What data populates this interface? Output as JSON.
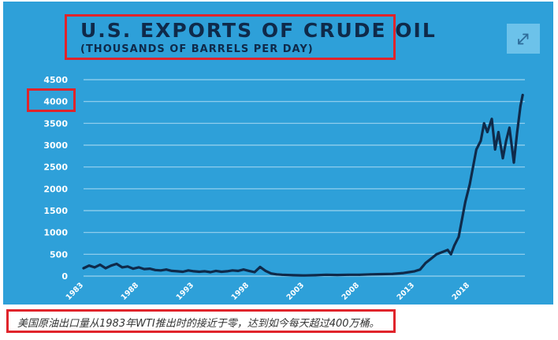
{
  "chart_data": {
    "type": "line",
    "title": "U.S. EXPORTS OF CRUDE OIL",
    "subtitle": "(THOUSANDS OF BARRELS PER DAY)",
    "x_ticks": [
      "1983",
      "1988",
      "1993",
      "1998",
      "2003",
      "2008",
      "2013",
      "2018"
    ],
    "y_ticks": [
      "4500",
      "4000",
      "3500",
      "3000",
      "2500",
      "2000",
      "1500",
      "1000",
      "500",
      "0"
    ],
    "ylim": [
      0,
      4500
    ],
    "xlim": [
      1983,
      2023
    ],
    "grid": true,
    "series": [
      {
        "color": "#0f2a4a",
        "x": [
          1983.0,
          1983.5,
          1984.0,
          1984.5,
          1985.0,
          1985.5,
          1986.0,
          1986.5,
          1987.0,
          1987.5,
          1988.0,
          1988.5,
          1989.0,
          1989.5,
          1990.0,
          1990.5,
          1991.0,
          1991.5,
          1992.0,
          1992.5,
          1993.0,
          1993.5,
          1994.0,
          1994.5,
          1995.0,
          1995.5,
          1996.0,
          1996.5,
          1997.0,
          1997.5,
          1998.0,
          1998.5,
          1999.0,
          1999.5,
          2000.0,
          2000.5,
          2001.0,
          2002.0,
          2003.0,
          2004.0,
          2005.0,
          2006.0,
          2007.0,
          2008.0,
          2009.0,
          2010.0,
          2011.0,
          2012.0,
          2012.5,
          2013.0,
          2013.5,
          2014.0,
          2014.5,
          2015.0,
          2015.5,
          2016.0,
          2016.3,
          2016.6,
          2017.0,
          2017.3,
          2017.6,
          2018.0,
          2018.3,
          2018.6,
          2019.0,
          2019.3,
          2019.6,
          2020.0,
          2020.3,
          2020.6,
          2021.0,
          2021.3,
          2021.6,
          2022.0,
          2022.3,
          2022.6,
          2022.8
        ],
        "y": [
          180,
          240,
          200,
          260,
          180,
          240,
          280,
          200,
          220,
          170,
          200,
          160,
          170,
          140,
          130,
          150,
          120,
          110,
          100,
          130,
          110,
          100,
          110,
          90,
          120,
          100,
          110,
          130,
          120,
          150,
          120,
          90,
          210,
          120,
          60,
          40,
          30,
          20,
          15,
          20,
          30,
          25,
          30,
          30,
          40,
          45,
          50,
          70,
          90,
          110,
          150,
          300,
          400,
          500,
          550,
          600,
          500,
          700,
          900,
          1300,
          1700,
          2100,
          2500,
          2900,
          3100,
          3500,
          3300,
          3600,
          2900,
          3300,
          2700,
          3100,
          3400,
          2600,
          3300,
          3900,
          4150
        ]
      }
    ]
  },
  "header": {
    "expand_icon": "expand-arrows-icon"
  },
  "caption": {
    "text": "美国原油出口量从1983年WTI推出时的接近于零，达到如今每天超过400万桶。"
  },
  "colors": {
    "background": "#2ea0d9",
    "line": "#0f2a4a",
    "grid": "#9ad2ef",
    "tick_text": "#ffffff",
    "highlight": "#e0242b"
  }
}
